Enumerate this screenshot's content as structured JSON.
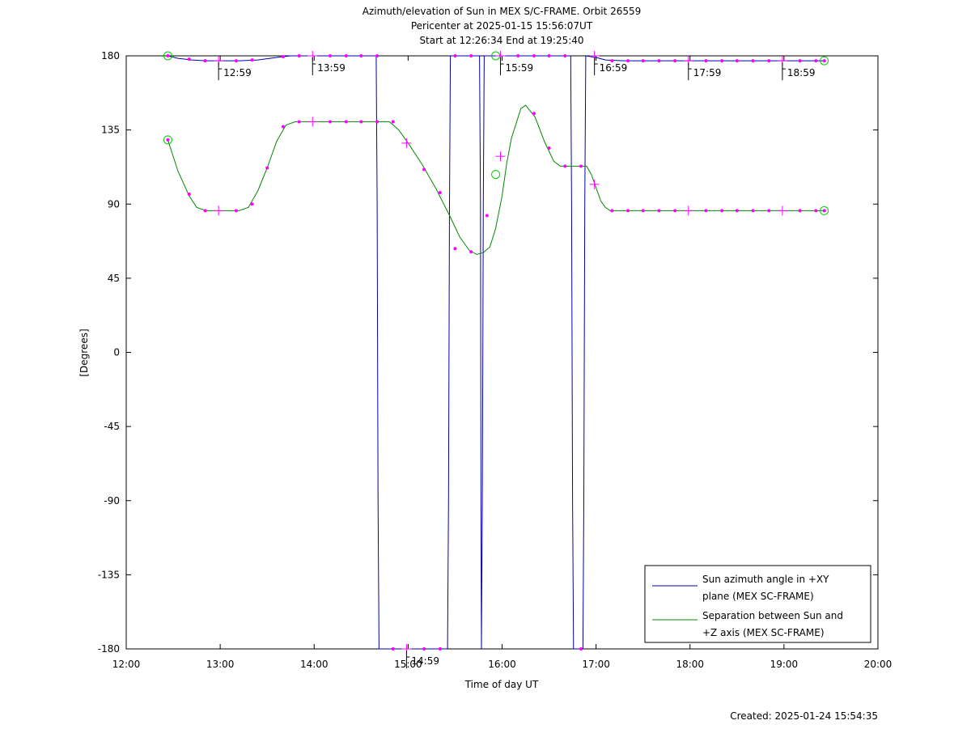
{
  "chart_data": {
    "type": "line",
    "title_lines": [
      "Azimuth/elevation of Sun in MEX S/C-FRAME.  Orbit 26559",
      "Pericenter at 2025-01-15 15:56:07UT",
      "Start at 12:26:34 End at 19:25:40"
    ],
    "xlabel": "Time of day UT",
    "ylabel": "[Degrees]",
    "xlim": [
      12.0,
      20.0
    ],
    "ylim": [
      -180,
      180
    ],
    "x_ticks": [
      12,
      13,
      14,
      15,
      16,
      17,
      18,
      19,
      20
    ],
    "x_tick_labels": [
      "12:00",
      "13:00",
      "14:00",
      "15:00",
      "16:00",
      "17:00",
      "18:00",
      "19:00",
      "20:00"
    ],
    "y_ticks": [
      180,
      135,
      90,
      45,
      0,
      -45,
      -90,
      -135,
      -180
    ],
    "y_tick_labels": [
      "180",
      "135",
      "90",
      "45",
      "0",
      "-45",
      "-90",
      "-135",
      "-180"
    ],
    "legend": {
      "position": "bottom-right"
    },
    "series": [
      {
        "name_lines": [
          "Sun azimuth angle in +XY",
          "plane (MEX SC-FRAME)"
        ],
        "color": "#0000aa",
        "points": [
          [
            12.443,
            180
          ],
          [
            12.55,
            178.5
          ],
          [
            12.7,
            177.5
          ],
          [
            12.85,
            177
          ],
          [
            13.0,
            177
          ],
          [
            13.2,
            177
          ],
          [
            13.4,
            177.5
          ],
          [
            13.6,
            179
          ],
          [
            13.75,
            180
          ],
          [
            14.0,
            180
          ],
          [
            14.5,
            180
          ],
          [
            14.66,
            180
          ],
          [
            14.67,
            90
          ],
          [
            14.68,
            -90
          ],
          [
            14.69,
            -180
          ],
          [
            15.0,
            -180
          ],
          [
            15.42,
            -180
          ],
          [
            15.43,
            -90
          ],
          [
            15.44,
            90
          ],
          [
            15.45,
            180
          ],
          [
            15.6,
            180
          ],
          [
            15.76,
            180
          ],
          [
            15.77,
            90
          ],
          [
            15.775,
            -90
          ],
          [
            15.78,
            -180
          ],
          [
            15.79,
            -90
          ],
          [
            15.8,
            90
          ],
          [
            15.81,
            180
          ],
          [
            15.93,
            180
          ],
          [
            16.2,
            180
          ],
          [
            16.7,
            180
          ],
          [
            16.73,
            180
          ],
          [
            16.74,
            90
          ],
          [
            16.75,
            -90
          ],
          [
            16.76,
            -180
          ],
          [
            16.86,
            -180
          ],
          [
            16.87,
            -90
          ],
          [
            16.88,
            90
          ],
          [
            16.89,
            180
          ],
          [
            17.0,
            179
          ],
          [
            17.1,
            177.5
          ],
          [
            17.3,
            177
          ],
          [
            18.0,
            177
          ],
          [
            18.5,
            177
          ],
          [
            19.0,
            177
          ],
          [
            19.43,
            177
          ]
        ]
      },
      {
        "name_lines": [
          "Separation between Sun and",
          "+Z axis (MEX SC-FRAME)"
        ],
        "color": "#008800",
        "points": [
          [
            12.443,
            129
          ],
          [
            12.55,
            110
          ],
          [
            12.67,
            95
          ],
          [
            12.75,
            88
          ],
          [
            12.85,
            86
          ],
          [
            13.0,
            86
          ],
          [
            13.2,
            86
          ],
          [
            13.3,
            88
          ],
          [
            13.4,
            98
          ],
          [
            13.5,
            112
          ],
          [
            13.6,
            128
          ],
          [
            13.7,
            138
          ],
          [
            13.8,
            140
          ],
          [
            14.0,
            140
          ],
          [
            14.5,
            140
          ],
          [
            14.8,
            140
          ],
          [
            14.9,
            135
          ],
          [
            15.0,
            127
          ],
          [
            15.15,
            114
          ],
          [
            15.3,
            99
          ],
          [
            15.45,
            82
          ],
          [
            15.55,
            70
          ],
          [
            15.65,
            62
          ],
          [
            15.73,
            59.5
          ],
          [
            15.8,
            60.5
          ],
          [
            15.87,
            64
          ],
          [
            15.93,
            75
          ],
          [
            16.0,
            95
          ],
          [
            16.05,
            115
          ],
          [
            16.1,
            130
          ],
          [
            16.2,
            148
          ],
          [
            16.25,
            150
          ],
          [
            16.35,
            143
          ],
          [
            16.45,
            128
          ],
          [
            16.55,
            116
          ],
          [
            16.62,
            113
          ],
          [
            16.7,
            113
          ],
          [
            16.9,
            113
          ],
          [
            16.95,
            108
          ],
          [
            17.0,
            100
          ],
          [
            17.05,
            92
          ],
          [
            17.1,
            88
          ],
          [
            17.15,
            86
          ],
          [
            17.3,
            86
          ],
          [
            18.0,
            86
          ],
          [
            18.5,
            86
          ],
          [
            19.0,
            86
          ],
          [
            19.43,
            86
          ]
        ]
      }
    ],
    "dot_markers": {
      "azimuth": [
        [
          12.443,
          180
        ],
        [
          12.67,
          178
        ],
        [
          12.84,
          177
        ],
        [
          13.17,
          177
        ],
        [
          13.34,
          177.5
        ],
        [
          13.67,
          179.5
        ],
        [
          13.84,
          180
        ],
        [
          14.17,
          180
        ],
        [
          14.34,
          180
        ],
        [
          14.5,
          180
        ],
        [
          14.67,
          180
        ],
        [
          14.84,
          -180
        ],
        [
          15.17,
          -180
        ],
        [
          15.34,
          -180
        ],
        [
          15.5,
          180
        ],
        [
          15.67,
          180
        ],
        [
          16.17,
          180
        ],
        [
          16.34,
          180
        ],
        [
          16.5,
          180
        ],
        [
          16.67,
          180
        ],
        [
          16.84,
          -180
        ],
        [
          17.17,
          177
        ],
        [
          17.34,
          177
        ],
        [
          17.5,
          177
        ],
        [
          17.67,
          177
        ],
        [
          17.84,
          177
        ],
        [
          18.17,
          177
        ],
        [
          18.34,
          177
        ],
        [
          18.5,
          177
        ],
        [
          18.67,
          177
        ],
        [
          18.84,
          177
        ],
        [
          19.17,
          177
        ],
        [
          19.34,
          177
        ],
        [
          19.43,
          177
        ]
      ],
      "separation": [
        [
          12.443,
          129
        ],
        [
          12.67,
          96
        ],
        [
          12.84,
          86
        ],
        [
          13.17,
          86
        ],
        [
          13.34,
          90
        ],
        [
          13.5,
          112
        ],
        [
          13.67,
          137
        ],
        [
          13.84,
          140
        ],
        [
          14.17,
          140
        ],
        [
          14.34,
          140
        ],
        [
          14.5,
          140
        ],
        [
          14.67,
          140
        ],
        [
          14.84,
          140
        ],
        [
          15.17,
          111
        ],
        [
          15.34,
          97
        ],
        [
          15.5,
          63
        ],
        [
          15.67,
          61
        ],
        [
          15.84,
          83
        ],
        [
          16.34,
          145
        ],
        [
          16.5,
          124
        ],
        [
          16.67,
          113
        ],
        [
          16.84,
          113
        ],
        [
          17.17,
          86
        ],
        [
          17.34,
          86
        ],
        [
          17.5,
          86
        ],
        [
          17.67,
          86
        ],
        [
          17.84,
          86
        ],
        [
          18.17,
          86
        ],
        [
          18.34,
          86
        ],
        [
          18.5,
          86
        ],
        [
          18.67,
          86
        ],
        [
          18.84,
          86
        ],
        [
          19.17,
          86
        ],
        [
          19.34,
          86
        ],
        [
          19.43,
          86
        ]
      ]
    },
    "cross_markers": [
      [
        12.983,
        177
      ],
      [
        13.983,
        180
      ],
      [
        14.983,
        -180
      ],
      [
        15.983,
        180
      ],
      [
        16.983,
        180
      ],
      [
        17.983,
        177
      ],
      [
        18.983,
        177
      ],
      [
        12.983,
        86
      ],
      [
        13.983,
        140
      ],
      [
        14.983,
        127
      ],
      [
        15.983,
        119
      ],
      [
        16.983,
        102
      ],
      [
        17.983,
        86
      ],
      [
        18.983,
        86
      ]
    ],
    "circle_markers": [
      [
        12.443,
        180
      ],
      [
        12.443,
        129
      ],
      [
        15.932,
        180
      ],
      [
        15.932,
        108
      ],
      [
        19.428,
        177
      ],
      [
        19.428,
        86
      ]
    ],
    "hour_annotations": [
      {
        "x": 12.983,
        "y": 177,
        "label": "12:59"
      },
      {
        "x": 13.983,
        "y": 180,
        "label": "13:59"
      },
      {
        "x": 14.983,
        "y": -180,
        "label": "14:59"
      },
      {
        "x": 15.983,
        "y": 180,
        "label": "15:59"
      },
      {
        "x": 16.983,
        "y": 180,
        "label": "16:59"
      },
      {
        "x": 17.983,
        "y": 177,
        "label": "17:59"
      },
      {
        "x": 18.983,
        "y": 177,
        "label": "18:59"
      }
    ],
    "colors": {
      "dot": "#ff00ff",
      "cross": "#ff00ff",
      "circle": "#00cc00"
    }
  },
  "footer": {
    "created": "Created: 2025-01-24 15:54:35"
  }
}
